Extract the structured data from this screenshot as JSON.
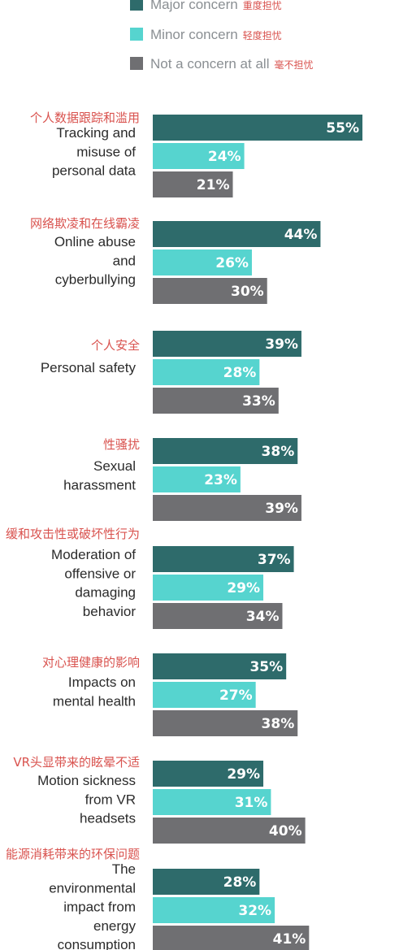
{
  "colors": {
    "major": "#2e6b6b",
    "minor": "#56d4cf",
    "none": "#6f6f72"
  },
  "chart_data": {
    "type": "bar",
    "orientation": "horizontal",
    "xlim": [
      0,
      100
    ],
    "legend_position": "top-left",
    "series": [
      {
        "key": "major",
        "name": "Major concern",
        "name_zh": "重度担忧",
        "values": [
          55,
          44,
          39,
          38,
          37,
          35,
          29,
          28
        ]
      },
      {
        "key": "minor",
        "name": "Minor concern",
        "name_zh": "轻度担忧",
        "values": [
          24,
          26,
          28,
          23,
          29,
          27,
          31,
          32
        ]
      },
      {
        "key": "none",
        "name": "Not a concern at all",
        "name_zh": "毫不担忧",
        "values": [
          21,
          30,
          33,
          39,
          34,
          38,
          40,
          41
        ]
      }
    ],
    "categories": [
      {
        "zh": "个人数据跟踪和滥用",
        "en": [
          "Tracking and",
          "misuse of",
          "personal data"
        ]
      },
      {
        "zh": "网络欺凌和在线霸凌",
        "en": [
          "Online abuse",
          "and",
          "cyberbullying"
        ]
      },
      {
        "zh": "个人安全",
        "en": [
          "Personal safety"
        ]
      },
      {
        "zh": "性骚扰",
        "en": [
          "Sexual",
          "harassment"
        ]
      },
      {
        "zh": "缓和攻击性或破坏性行为",
        "en": [
          "Moderation of",
          "offensive or",
          "damaging",
          "behavior"
        ]
      },
      {
        "zh": "对心理健康的影响",
        "en": [
          "Impacts on",
          "mental health"
        ]
      },
      {
        "zh": "VR头显带来的眩晕不适",
        "en": [
          "Motion sickness",
          "from VR",
          "headsets"
        ]
      },
      {
        "zh": "能源消耗带来的环保问题",
        "en": [
          "The",
          "environmental",
          "impact from",
          "energy",
          "consumption"
        ]
      }
    ]
  }
}
